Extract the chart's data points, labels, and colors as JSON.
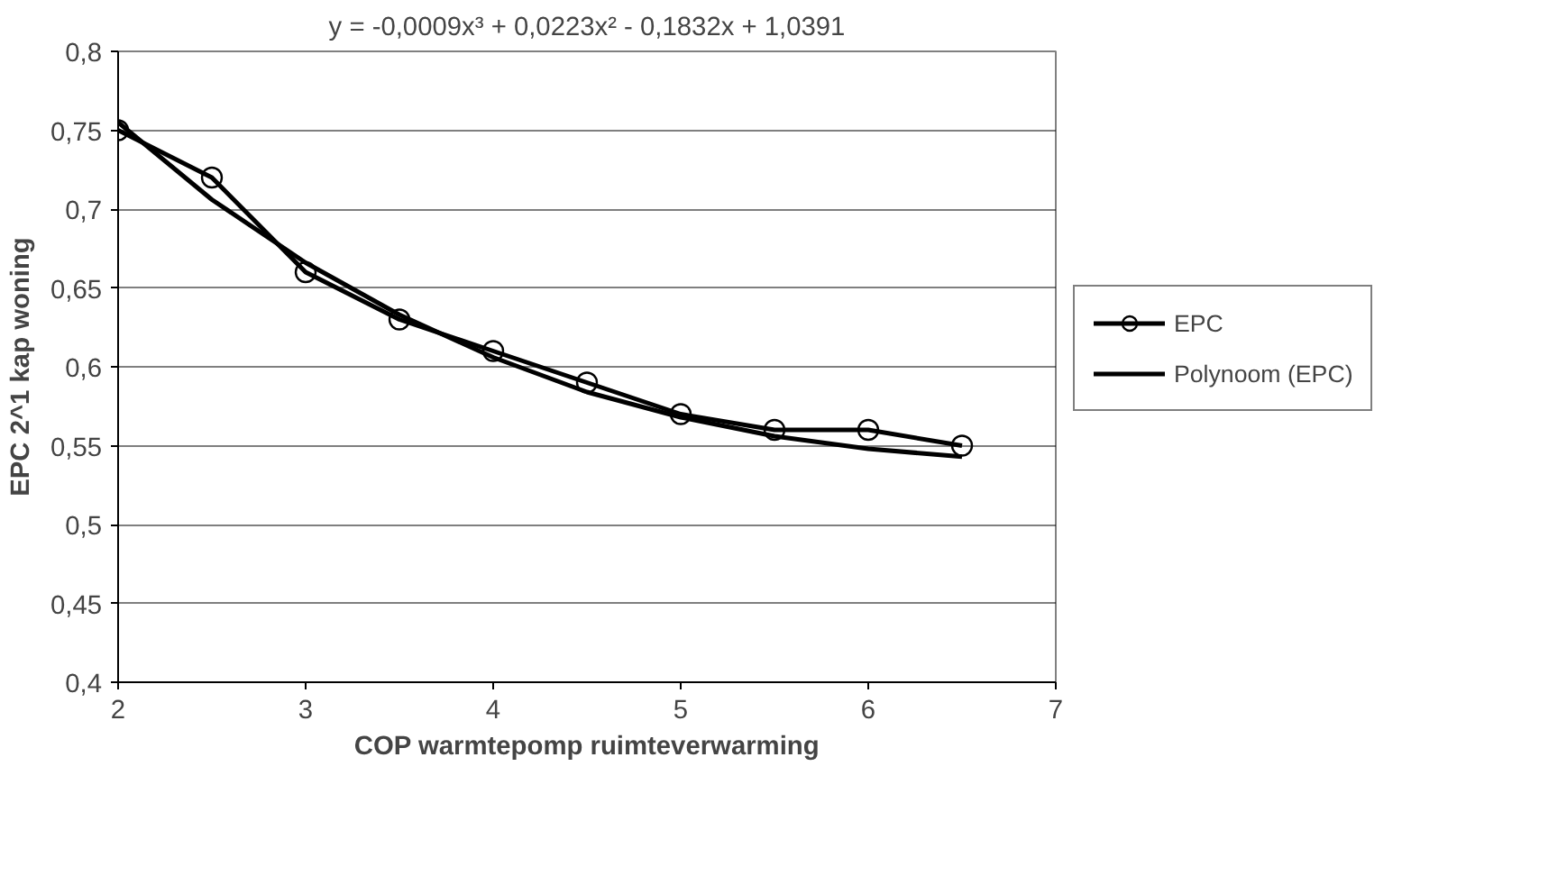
{
  "chart_data": {
    "type": "line",
    "annotations": [
      "y = -0,0009x³ + 0,0223x² - 0,1832x + 1,0391"
    ],
    "xlabel": "COP warmtepomp ruimteverwarming",
    "ylabel": "EPC 2^1 kap woning",
    "x": [
      2,
      2.5,
      3,
      3.5,
      4,
      4.5,
      5,
      5.5,
      6,
      6.5
    ],
    "series": [
      {
        "name": "EPC",
        "color": "#000000",
        "marker": "circle",
        "values": [
          0.75,
          0.72,
          0.66,
          0.63,
          0.61,
          0.59,
          0.57,
          0.56,
          0.56,
          0.55
        ]
      },
      {
        "name": "Polynoom (EPC)",
        "color": "#000000",
        "type": "line",
        "marker": "none",
        "x": [
          2,
          2.5,
          3,
          3.5,
          4,
          4.5,
          5,
          5.5,
          6,
          6.5
        ],
        "values": [
          0.755,
          0.706,
          0.666,
          0.633,
          0.606,
          0.584,
          0.568,
          0.556,
          0.548,
          0.543
        ]
      }
    ],
    "xlim": [
      2,
      7
    ],
    "xticks": [
      2,
      3,
      4,
      5,
      6,
      7
    ],
    "ylim": [
      0.4,
      0.8
    ],
    "yticks": [
      {
        "value": 0.4,
        "label": "0,4"
      },
      {
        "value": 0.45,
        "label": "0,45"
      },
      {
        "value": 0.5,
        "label": "0,5"
      },
      {
        "value": 0.55,
        "label": "0,55"
      },
      {
        "value": 0.6,
        "label": "0,6"
      },
      {
        "value": 0.65,
        "label": "0,65"
      },
      {
        "value": 0.7,
        "label": "0,7"
      },
      {
        "value": 0.75,
        "label": "0,75"
      },
      {
        "value": 0.8,
        "label": "0,8"
      }
    ],
    "grid": "y",
    "legend": "right",
    "line_style": "solid"
  }
}
